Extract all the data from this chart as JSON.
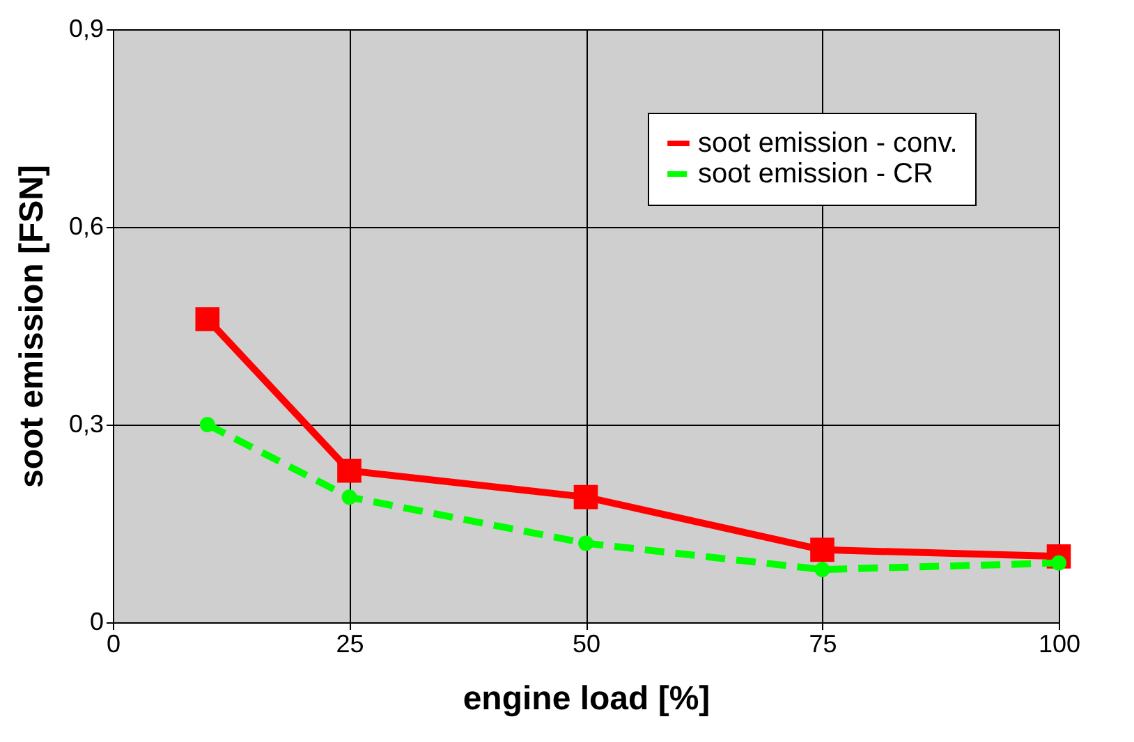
{
  "chart_data": {
    "type": "line",
    "xlabel": "engine load [%]",
    "ylabel": "soot emission [FSN]",
    "x": [
      10,
      25,
      50,
      75,
      100
    ],
    "series": [
      {
        "name": "soot emission - conv.",
        "color": "#ff0000",
        "values": [
          0.46,
          0.23,
          0.19,
          0.11,
          0.1
        ],
        "marker": "square",
        "line_style": "solid"
      },
      {
        "name": "soot emission - CR",
        "color": "#00ff00",
        "values": [
          0.3,
          0.19,
          0.12,
          0.08,
          0.09
        ],
        "marker": "circle",
        "line_style": "dashed"
      }
    ],
    "xlim": [
      0,
      100
    ],
    "xticks": [
      0,
      25,
      50,
      75,
      100
    ],
    "ylim": [
      0,
      0.9
    ],
    "yticks": [
      0,
      {
        "value": 0.3,
        "label": "0,3"
      },
      {
        "value": 0.6,
        "label": "0,6"
      },
      {
        "value": 0.9,
        "label": "0,9"
      }
    ],
    "grid": true,
    "legend": "top right"
  }
}
